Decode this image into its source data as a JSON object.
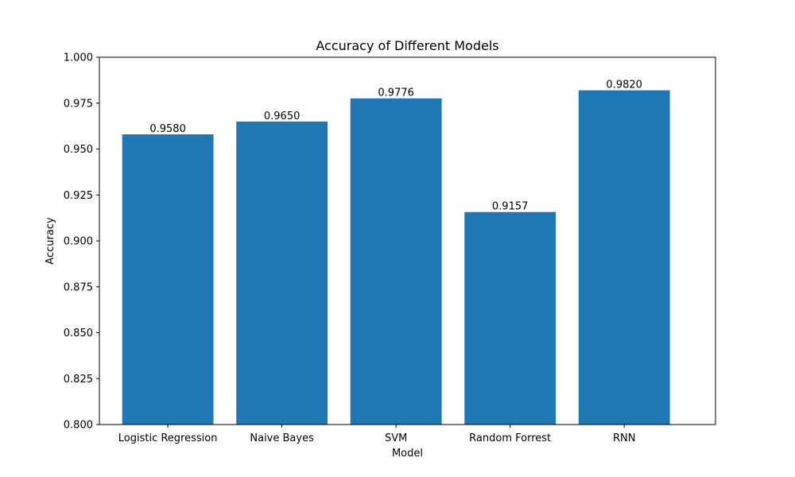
{
  "chart_data": {
    "type": "bar",
    "title": "Accuracy of Different Models",
    "xlabel": "Model",
    "ylabel": "Accuracy",
    "categories": [
      "Logistic Regression",
      "Naive Bayes",
      "SVM",
      "Random Forrest",
      "RNN"
    ],
    "values": [
      0.958,
      0.965,
      0.9776,
      0.9157,
      0.982
    ],
    "data_labels": [
      "0.9580",
      "0.9650",
      "0.9776",
      "0.9157",
      "0.9820"
    ],
    "ylim": [
      0.8,
      1.0
    ],
    "yticks": [
      0.8,
      0.825,
      0.85,
      0.875,
      0.9,
      0.925,
      0.95,
      0.975,
      1.0
    ],
    "ytick_labels": [
      "0.800",
      "0.825",
      "0.850",
      "0.875",
      "0.900",
      "0.925",
      "0.950",
      "0.975",
      "1.000"
    ],
    "grid": false,
    "bar_color": "#1f77b4"
  }
}
